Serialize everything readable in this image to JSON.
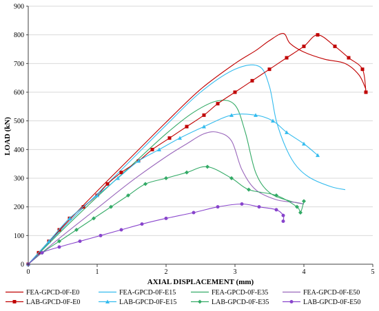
{
  "chart_data": {
    "type": "line",
    "title": "",
    "xlabel": "AXIAL DISPLACEMENT (mm)",
    "ylabel": "LOAD (kN)",
    "xlim": [
      0,
      5
    ],
    "ylim": [
      0,
      900
    ],
    "xticks": [
      0,
      1,
      2,
      3,
      4,
      5
    ],
    "yticks": [
      0,
      100,
      200,
      300,
      400,
      500,
      600,
      700,
      800,
      900
    ],
    "grid": "horizontal",
    "legend_position": "bottom",
    "series": [
      {
        "name": "FEA-GPCD-0F-E0",
        "color": "#c00000",
        "marker": "none",
        "x": [
          0,
          0.5,
          1.0,
          1.5,
          2.0,
          2.5,
          3.0,
          3.3,
          3.5,
          3.7,
          3.8,
          4.0,
          4.3,
          4.6,
          4.8,
          4.9
        ],
        "y": [
          0,
          130,
          255,
          375,
          495,
          610,
          700,
          745,
          780,
          805,
          770,
          740,
          715,
          700,
          660,
          610
        ]
      },
      {
        "name": "FEA-GPCD-0F-E15",
        "color": "#33bbee",
        "marker": "none",
        "x": [
          0,
          0.5,
          1.0,
          1.5,
          2.0,
          2.5,
          3.0,
          3.35,
          3.5,
          3.6,
          3.75,
          3.9,
          4.1,
          4.4,
          4.6
        ],
        "y": [
          0,
          125,
          245,
          365,
          485,
          600,
          680,
          690,
          620,
          500,
          400,
          340,
          300,
          270,
          260
        ]
      },
      {
        "name": "FEA-GPCD-0F-E35",
        "color": "#33aa66",
        "marker": "none",
        "x": [
          0,
          0.5,
          1.0,
          1.5,
          2.0,
          2.4,
          2.75,
          3.0,
          3.15,
          3.3,
          3.5,
          3.8,
          4.0
        ],
        "y": [
          0,
          120,
          235,
          345,
          455,
          530,
          570,
          555,
          460,
          320,
          250,
          220,
          210
        ]
      },
      {
        "name": "FEA-GPCD-0F-E50",
        "color": "#9966bb",
        "marker": "none",
        "x": [
          0,
          0.5,
          1.0,
          1.5,
          2.0,
          2.3,
          2.55,
          2.75,
          2.95,
          3.1,
          3.3,
          3.6,
          3.9,
          4.0
        ],
        "y": [
          0,
          100,
          195,
          290,
          375,
          420,
          455,
          460,
          430,
          330,
          260,
          225,
          215,
          210
        ]
      },
      {
        "name": "LAB-GPCD-0F-E0",
        "color": "#c00000",
        "marker": "square",
        "x": [
          0,
          0.15,
          0.3,
          0.45,
          0.6,
          0.8,
          1.0,
          1.15,
          1.35,
          1.6,
          1.8,
          2.05,
          2.3,
          2.55,
          2.75,
          3.0,
          3.25,
          3.5,
          3.75,
          4.0,
          4.2,
          4.45,
          4.65,
          4.85,
          4.9
        ],
        "y": [
          0,
          40,
          80,
          120,
          160,
          200,
          240,
          280,
          320,
          360,
          400,
          440,
          480,
          520,
          560,
          600,
          640,
          680,
          720,
          760,
          800,
          760,
          720,
          680,
          600
        ]
      },
      {
        "name": "LAB-GPCD-0F-E15",
        "color": "#33bbee",
        "marker": "triangle",
        "x": [
          0,
          0.3,
          0.6,
          1.0,
          1.3,
          1.6,
          1.9,
          2.2,
          2.55,
          2.95,
          3.3,
          3.55,
          3.75,
          4.0,
          4.2
        ],
        "y": [
          0,
          80,
          160,
          240,
          300,
          360,
          400,
          440,
          480,
          520,
          520,
          500,
          460,
          420,
          380
        ]
      },
      {
        "name": "LAB-GPCD-0F-E35",
        "color": "#33aa66",
        "marker": "diamond",
        "x": [
          0,
          0.2,
          0.45,
          0.7,
          0.95,
          1.2,
          1.45,
          1.7,
          2.0,
          2.3,
          2.6,
          2.95,
          3.2,
          3.6,
          3.9,
          3.95,
          4.0
        ],
        "y": [
          0,
          40,
          80,
          120,
          160,
          200,
          240,
          280,
          300,
          320,
          340,
          300,
          260,
          240,
          200,
          180,
          220
        ]
      },
      {
        "name": "LAB-GPCD-0F-E50",
        "color": "#8844cc",
        "marker": "circle",
        "x": [
          0,
          0.2,
          0.45,
          0.75,
          1.05,
          1.35,
          1.65,
          2.0,
          2.4,
          2.75,
          3.1,
          3.35,
          3.6,
          3.7,
          3.7
        ],
        "y": [
          0,
          40,
          60,
          80,
          100,
          120,
          140,
          160,
          180,
          200,
          210,
          200,
          190,
          170,
          150
        ]
      }
    ]
  }
}
